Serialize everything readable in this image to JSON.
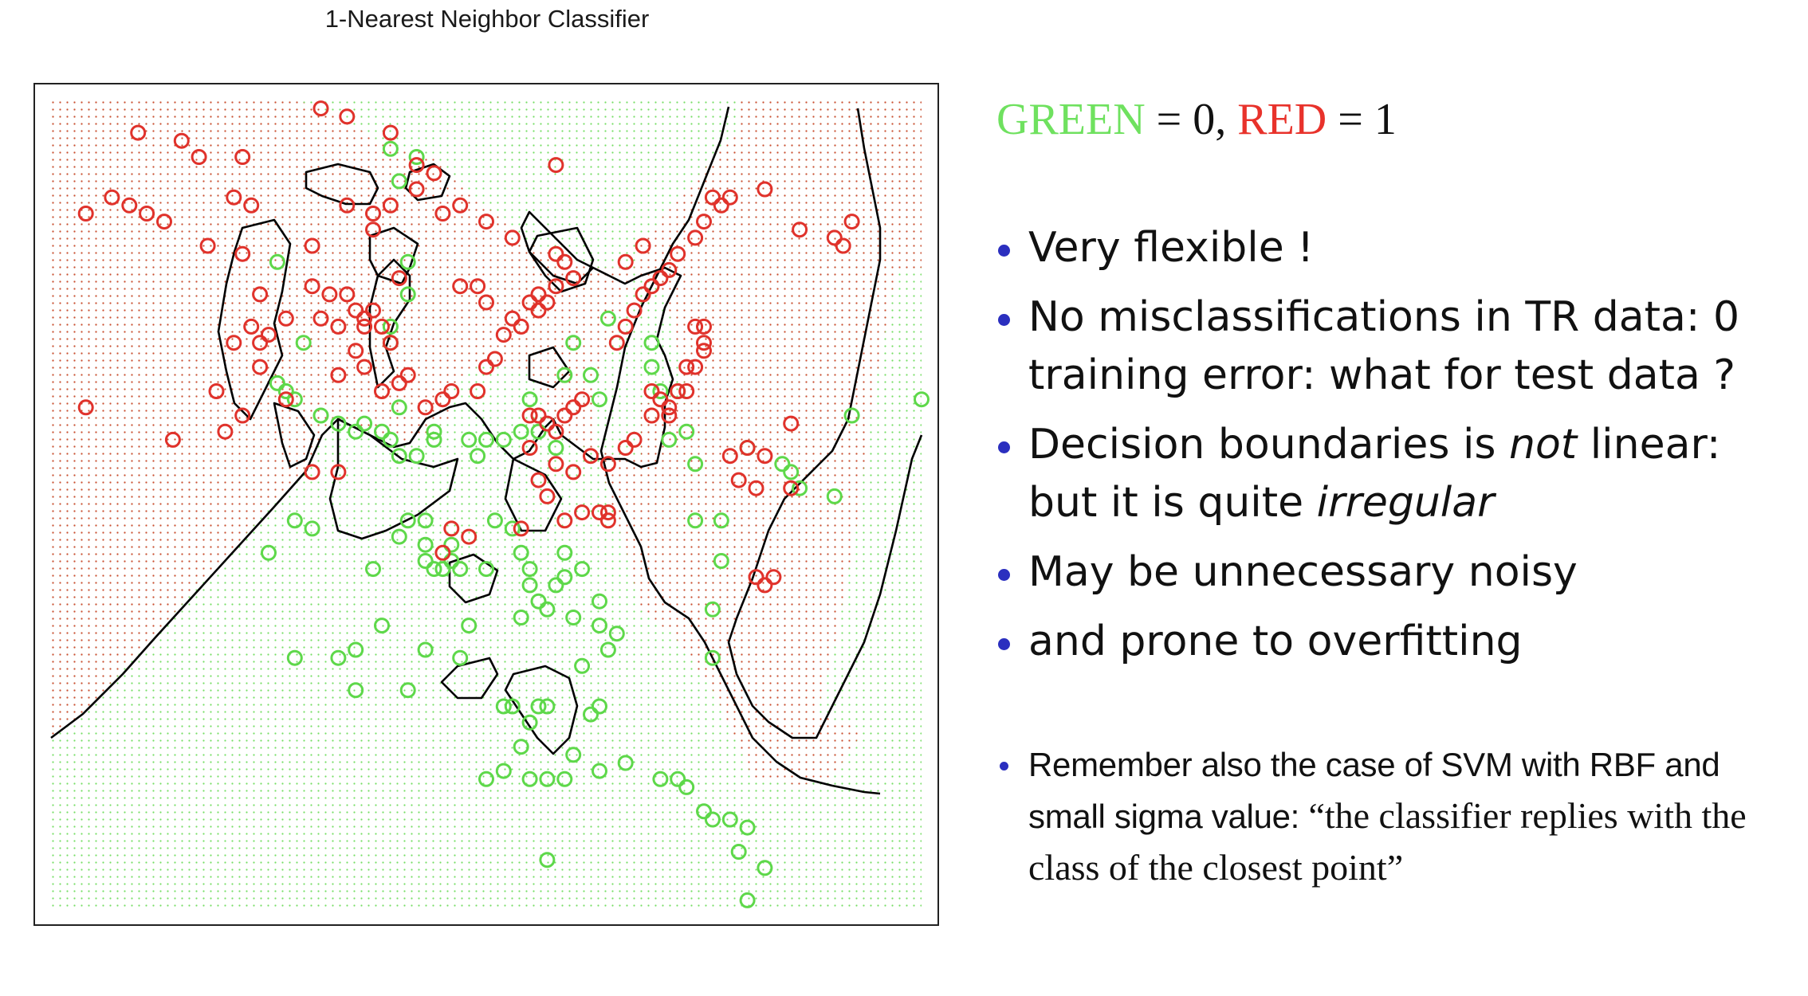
{
  "chart_data": {
    "type": "scatter",
    "title": "1-Nearest Neighbor Classifier",
    "xlabel": "",
    "ylabel": "",
    "xlim": [
      0,
      100
    ],
    "ylim": [
      0,
      100
    ],
    "grid": false,
    "background_grid": "dotted class-region fill",
    "colors": {
      "green": "#5ed84a",
      "red": "#e0322b",
      "boundary": "#000000"
    },
    "series": [
      {
        "name": "GREEN",
        "color": "#5ed84a",
        "points": [
          [
            39,
            94
          ],
          [
            42,
            93
          ],
          [
            40,
            90
          ],
          [
            41,
            80
          ],
          [
            39,
            72
          ],
          [
            39,
            70
          ],
          [
            41,
            76
          ],
          [
            26,
            80
          ],
          [
            29,
            70
          ],
          [
            26,
            65
          ],
          [
            27,
            64
          ],
          [
            28,
            63
          ],
          [
            31,
            61
          ],
          [
            33,
            60
          ],
          [
            35,
            59
          ],
          [
            36,
            60
          ],
          [
            38,
            59
          ],
          [
            39,
            58
          ],
          [
            40,
            62
          ],
          [
            40,
            56
          ],
          [
            42,
            56
          ],
          [
            44,
            58
          ],
          [
            44,
            59
          ],
          [
            48,
            58
          ],
          [
            49,
            56
          ],
          [
            50,
            58
          ],
          [
            52,
            58
          ],
          [
            54,
            59
          ],
          [
            55,
            63
          ],
          [
            56,
            59
          ],
          [
            58,
            57
          ],
          [
            59,
            66
          ],
          [
            62,
            66
          ],
          [
            63,
            63
          ],
          [
            60,
            70
          ],
          [
            64,
            73
          ],
          [
            69,
            70
          ],
          [
            69,
            67
          ],
          [
            70,
            64
          ],
          [
            72,
            64
          ],
          [
            71,
            58
          ],
          [
            73,
            59
          ],
          [
            74,
            55
          ],
          [
            74,
            48
          ],
          [
            77,
            48
          ],
          [
            77,
            43
          ],
          [
            76,
            37
          ],
          [
            76,
            31
          ],
          [
            80,
            57
          ],
          [
            84,
            55
          ],
          [
            85,
            54
          ],
          [
            86,
            52
          ],
          [
            90,
            51
          ],
          [
            92,
            61
          ],
          [
            100,
            63
          ],
          [
            30,
            47
          ],
          [
            25,
            44
          ],
          [
            37,
            42
          ],
          [
            40,
            46
          ],
          [
            41,
            48
          ],
          [
            43,
            48
          ],
          [
            43,
            45
          ],
          [
            43,
            43
          ],
          [
            44,
            42
          ],
          [
            45,
            42
          ],
          [
            46,
            43
          ],
          [
            47,
            42
          ],
          [
            46,
            45
          ],
          [
            50,
            42
          ],
          [
            51,
            48
          ],
          [
            53,
            47
          ],
          [
            54,
            44
          ],
          [
            55,
            42
          ],
          [
            55,
            40
          ],
          [
            56,
            38
          ],
          [
            57,
            37
          ],
          [
            58,
            40
          ],
          [
            59,
            41
          ],
          [
            59,
            44
          ],
          [
            61,
            42
          ],
          [
            63,
            38
          ],
          [
            63,
            35
          ],
          [
            65,
            34
          ],
          [
            61,
            30
          ],
          [
            64,
            32
          ],
          [
            60,
            36
          ],
          [
            54,
            36
          ],
          [
            48,
            35
          ],
          [
            47,
            31
          ],
          [
            43,
            32
          ],
          [
            41,
            27
          ],
          [
            38,
            35
          ],
          [
            35,
            32
          ],
          [
            33,
            31
          ],
          [
            28,
            31
          ],
          [
            35,
            27
          ],
          [
            28,
            48
          ],
          [
            53,
            25
          ],
          [
            52,
            25
          ],
          [
            55,
            23
          ],
          [
            56,
            25
          ],
          [
            57,
            25
          ],
          [
            62,
            24
          ],
          [
            63,
            25
          ],
          [
            54,
            20
          ],
          [
            52,
            17
          ],
          [
            55,
            16
          ],
          [
            57,
            16
          ],
          [
            59,
            16
          ],
          [
            60,
            19
          ],
          [
            63,
            17
          ],
          [
            66,
            18
          ],
          [
            70,
            16
          ],
          [
            72,
            16
          ],
          [
            73,
            15
          ],
          [
            75,
            12
          ],
          [
            76,
            11
          ],
          [
            78,
            11
          ],
          [
            80,
            10
          ],
          [
            79,
            7
          ],
          [
            82,
            5
          ],
          [
            80,
            1
          ],
          [
            50,
            16
          ],
          [
            57,
            6
          ]
        ]
      },
      {
        "name": "RED",
        "color": "#e0322b",
        "points": [
          [
            10,
            96
          ],
          [
            15,
            95
          ],
          [
            17,
            93
          ],
          [
            22,
            93
          ],
          [
            31,
            99
          ],
          [
            34,
            98
          ],
          [
            39,
            96
          ],
          [
            42,
            92
          ],
          [
            44,
            91
          ],
          [
            42,
            89
          ],
          [
            39,
            87
          ],
          [
            37,
            86
          ],
          [
            37,
            84
          ],
          [
            45,
            86
          ],
          [
            47,
            87
          ],
          [
            50,
            85
          ],
          [
            53,
            83
          ],
          [
            58,
            92
          ],
          [
            4,
            86
          ],
          [
            7,
            88
          ],
          [
            9,
            87
          ],
          [
            11,
            86
          ],
          [
            13,
            85
          ],
          [
            21,
            88
          ],
          [
            23,
            87
          ],
          [
            34,
            87
          ],
          [
            30,
            82
          ],
          [
            22,
            81
          ],
          [
            18,
            82
          ],
          [
            24,
            76
          ],
          [
            27,
            73
          ],
          [
            31,
            73
          ],
          [
            33,
            72
          ],
          [
            35,
            69
          ],
          [
            36,
            72
          ],
          [
            33,
            66
          ],
          [
            36,
            67
          ],
          [
            38,
            64
          ],
          [
            40,
            65
          ],
          [
            41,
            66
          ],
          [
            43,
            62
          ],
          [
            45,
            63
          ],
          [
            46,
            64
          ],
          [
            49,
            64
          ],
          [
            50,
            67
          ],
          [
            51,
            68
          ],
          [
            52,
            71
          ],
          [
            54,
            72
          ],
          [
            55,
            75
          ],
          [
            56,
            76
          ],
          [
            57,
            75
          ],
          [
            58,
            77
          ],
          [
            59,
            80
          ],
          [
            56,
            74
          ],
          [
            53,
            73
          ],
          [
            47,
            77
          ],
          [
            49,
            77
          ],
          [
            50,
            75
          ],
          [
            55,
            61
          ],
          [
            56,
            61
          ],
          [
            57,
            60
          ],
          [
            58,
            59
          ],
          [
            59,
            61
          ],
          [
            55,
            57
          ],
          [
            58,
            55
          ],
          [
            56,
            53
          ],
          [
            57,
            51
          ],
          [
            59,
            48
          ],
          [
            61,
            49
          ],
          [
            63,
            49
          ],
          [
            64,
            49
          ],
          [
            64,
            48
          ],
          [
            60,
            54
          ],
          [
            62,
            56
          ],
          [
            64,
            55
          ],
          [
            66,
            57
          ],
          [
            67,
            58
          ],
          [
            69,
            61
          ],
          [
            69,
            64
          ],
          [
            71,
            61
          ],
          [
            72,
            64
          ],
          [
            73,
            64
          ],
          [
            73,
            67
          ],
          [
            74,
            67
          ],
          [
            75,
            69
          ],
          [
            75,
            70
          ],
          [
            75,
            72
          ],
          [
            74,
            72
          ],
          [
            70,
            63
          ],
          [
            71,
            62
          ],
          [
            65,
            70
          ],
          [
            66,
            72
          ],
          [
            67,
            74
          ],
          [
            68,
            76
          ],
          [
            69,
            77
          ],
          [
            70,
            78
          ],
          [
            71,
            79
          ],
          [
            72,
            81
          ],
          [
            74,
            83
          ],
          [
            75,
            85
          ],
          [
            76,
            88
          ],
          [
            77,
            87
          ],
          [
            78,
            88
          ],
          [
            82,
            89
          ],
          [
            86,
            84
          ],
          [
            90,
            83
          ],
          [
            92,
            85
          ],
          [
            91,
            82
          ],
          [
            66,
            80
          ],
          [
            68,
            82
          ],
          [
            45,
            44
          ],
          [
            48,
            46
          ],
          [
            46,
            47
          ],
          [
            54,
            47
          ],
          [
            60,
            62
          ],
          [
            61,
            63
          ],
          [
            58,
            81
          ],
          [
            60,
            78
          ],
          [
            37,
            74
          ],
          [
            38,
            72
          ],
          [
            39,
            70
          ],
          [
            34,
            76
          ],
          [
            40,
            78
          ],
          [
            27,
            63
          ],
          [
            22,
            61
          ],
          [
            19,
            64
          ],
          [
            24,
            67
          ],
          [
            21,
            70
          ],
          [
            24,
            70
          ],
          [
            23,
            72
          ],
          [
            25,
            71
          ],
          [
            30,
            77
          ],
          [
            32,
            76
          ],
          [
            35,
            74
          ],
          [
            36,
            73
          ],
          [
            4,
            62
          ],
          [
            14,
            58
          ],
          [
            20,
            59
          ],
          [
            30,
            54
          ],
          [
            33,
            54
          ],
          [
            79,
            53
          ],
          [
            78,
            56
          ],
          [
            81,
            52
          ],
          [
            82,
            56
          ],
          [
            85,
            60
          ],
          [
            85,
            52
          ],
          [
            80,
            57
          ],
          [
            81,
            41
          ],
          [
            82,
            40
          ],
          [
            83,
            41
          ]
        ]
      }
    ]
  },
  "legend": {
    "green_label": "GREEN",
    "green_eq": " = 0, ",
    "red_label": "RED",
    "red_eq": " = 1"
  },
  "bullets": {
    "b1": "Very flexible !",
    "b2": "No misclassifications in TR data: 0 training error: what for test data ?",
    "b3_pre": "Decision boundaries is ",
    "b3_not": "not",
    "b3_mid": " linear: but it is quite ",
    "b3_irregular": "irregular",
    "b4": "May be unnecessary noisy",
    "b5": "and prone to overfitting"
  },
  "remember": {
    "sans": "Remember also the case of SVM with RBF and small sigma value: ",
    "serif": "“the classifier replies with the class of the closest point”"
  }
}
